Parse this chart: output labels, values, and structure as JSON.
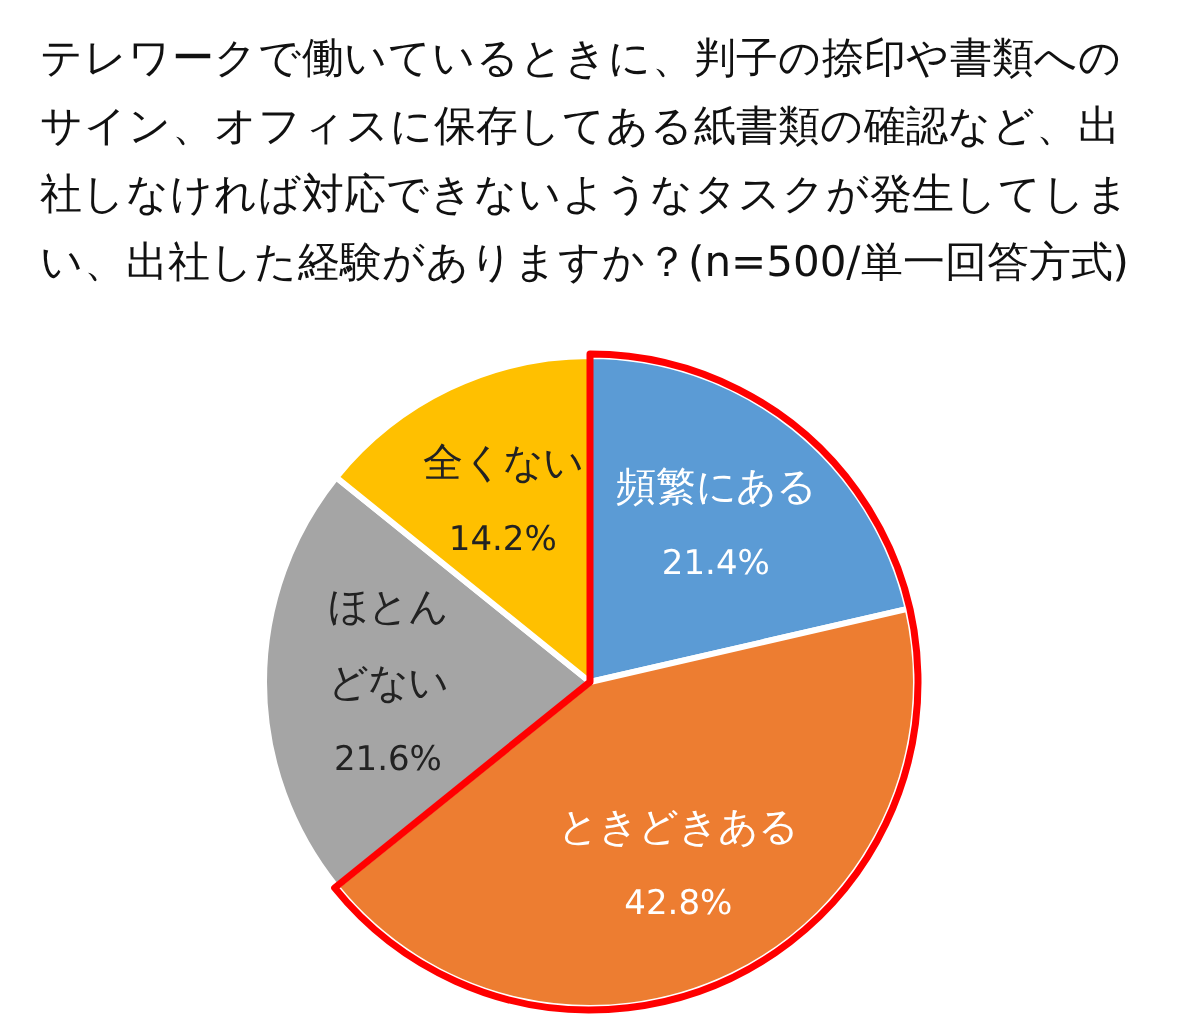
{
  "chart_data": {
    "type": "pie",
    "title": "テレワークで働いているときに、判子の捺印や書類へのサイン、オフィスに保存してある紙書類の確認など、出社しなければ対応できないようなタスクが発生してしまい、出社した経験がありますか？(n=500/単一回答方式)",
    "categories": [
      "頻繁にある",
      "ときどきある",
      "ほとんどない",
      "全くない"
    ],
    "values": [
      21.4,
      42.8,
      21.6,
      14.2
    ],
    "colors": [
      "#5b9bd5",
      "#ed7d31",
      "#a5a5a5",
      "#ffc000"
    ],
    "value_labels": [
      "21.4%",
      "42.8%",
      "21.6%",
      "14.2%"
    ]
  }
}
